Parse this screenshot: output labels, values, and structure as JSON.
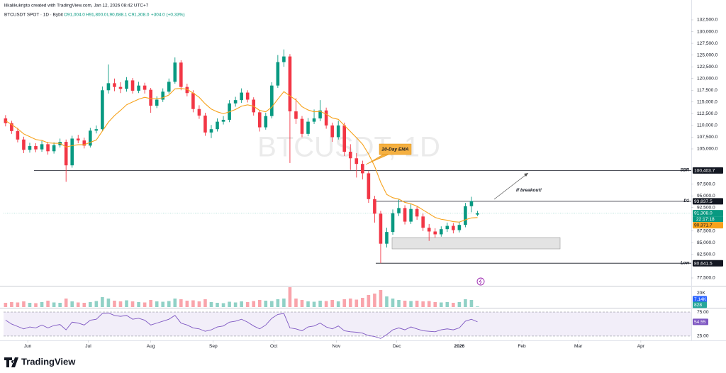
{
  "chart_data": {
    "type": "candlestick",
    "credit": "lilkalikukripto created with TradingView.com, Jan 12, 2026 08:42 UTC+7",
    "symbol": "BTCUSDT SPOT · 1D · Bybit",
    "ohlc": [
      {
        "value": 91004,
        "label": "O91,004.0"
      },
      {
        "value": 91800,
        "label": "H91,800.0"
      },
      {
        "value": 90688.1,
        "label": "L90,688.1"
      },
      {
        "value": 91308,
        "label": "C91,308.0"
      }
    ],
    "change": "+304.0 (+0.33%)",
    "watermark": "BTCUSDT, 1D",
    "up_color": "#089981",
    "down_color": "#f23645",
    "x": [
      0,
      3,
      6,
      9,
      12,
      15,
      18,
      21,
      24,
      27,
      30,
      33,
      36,
      39,
      42,
      45,
      48,
      51,
      54,
      57,
      60,
      63,
      66,
      69,
      72,
      75,
      78,
      81,
      84,
      87,
      90,
      93,
      96,
      99,
      102,
      105,
      108,
      111,
      114,
      117,
      120,
      123,
      126,
      129,
      132,
      135,
      138,
      141,
      144,
      147,
      150,
      153,
      156,
      159,
      162,
      165,
      168,
      171,
      174,
      177,
      180,
      183,
      186,
      189,
      192,
      195,
      198,
      201,
      204,
      207,
      210,
      213,
      216,
      219,
      222,
      225,
      228,
      231,
      234
    ],
    "xlim": [
      -1,
      340
    ],
    "xticks": [
      {
        "value": 11,
        "label": "Jun"
      },
      {
        "value": 41,
        "label": "Jul"
      },
      {
        "value": 72,
        "label": "Aug"
      },
      {
        "value": 103,
        "label": "Sep"
      },
      {
        "value": 133,
        "label": "Oct"
      },
      {
        "value": 164,
        "label": "Nov"
      },
      {
        "value": 194,
        "label": "Dec"
      },
      {
        "value": 225,
        "label": "2026"
      },
      {
        "value": 256,
        "label": "Feb"
      },
      {
        "value": 284,
        "label": "Mar"
      },
      {
        "value": 315,
        "label": "Apr"
      }
    ],
    "candles": [
      [
        111500,
        112200,
        109800,
        110500
      ],
      [
        110500,
        111000,
        108200,
        108800
      ],
      [
        108800,
        109500,
        106400,
        107000
      ],
      [
        107000,
        107600,
        104100,
        104800
      ],
      [
        104800,
        106300,
        104200,
        105600
      ],
      [
        105600,
        106200,
        104300,
        104900
      ],
      [
        104900,
        106700,
        104400,
        106000
      ],
      [
        106000,
        106500,
        103800,
        104500
      ],
      [
        104500,
        106400,
        104000,
        105800
      ],
      [
        105800,
        107200,
        105300,
        106500
      ],
      [
        106500,
        107000,
        98000,
        101500
      ],
      [
        101500,
        107800,
        101000,
        107200
      ],
      [
        107200,
        108000,
        106200,
        106800
      ],
      [
        106800,
        107400,
        105100,
        105700
      ],
      [
        105700,
        109500,
        105300,
        108900
      ],
      [
        108900,
        110000,
        108300,
        109200
      ],
      [
        109200,
        118300,
        108900,
        117500
      ],
      [
        117500,
        123000,
        116800,
        119000
      ],
      [
        119000,
        120000,
        117300,
        118200
      ],
      [
        118200,
        119200,
        116900,
        117800
      ],
      [
        117800,
        120300,
        117200,
        119600
      ],
      [
        119600,
        120100,
        116800,
        117400
      ],
      [
        117400,
        119300,
        116900,
        118500
      ],
      [
        118500,
        119100,
        116800,
        117600
      ],
      [
        117600,
        118000,
        112700,
        114200
      ],
      [
        114200,
        116200,
        113700,
        115500
      ],
      [
        115500,
        117900,
        115000,
        117200
      ],
      [
        117200,
        120000,
        116800,
        119300
      ],
      [
        119300,
        124500,
        118900,
        123400
      ],
      [
        123400,
        123900,
        117500,
        118200
      ],
      [
        118200,
        118900,
        116200,
        116900
      ],
      [
        116900,
        117500,
        112800,
        113500
      ],
      [
        113500,
        114300,
        111400,
        112100
      ],
      [
        112100,
        112700,
        107800,
        108500
      ],
      [
        108500,
        110100,
        107300,
        109200
      ],
      [
        109200,
        111500,
        108700,
        110800
      ],
      [
        110800,
        112000,
        110200,
        111200
      ],
      [
        111200,
        115400,
        110700,
        114700
      ],
      [
        114700,
        116100,
        114000,
        115400
      ],
      [
        115400,
        117900,
        114800,
        117000
      ],
      [
        117000,
        117500,
        114900,
        115500
      ],
      [
        115500,
        116000,
        112100,
        112800
      ],
      [
        112800,
        113300,
        108700,
        109600
      ],
      [
        109600,
        112700,
        109100,
        112000
      ],
      [
        112000,
        119200,
        111500,
        118500
      ],
      [
        118500,
        125000,
        118000,
        123500
      ],
      [
        123500,
        126200,
        122500,
        124700
      ],
      [
        124700,
        125200,
        102000,
        113000
      ],
      [
        113000,
        115800,
        110300,
        111400
      ],
      [
        111400,
        112000,
        107500,
        108200
      ],
      [
        108200,
        111600,
        107700,
        110800
      ],
      [
        110800,
        113400,
        110300,
        111500
      ],
      [
        111500,
        115400,
        110900,
        113200
      ],
      [
        113200,
        113800,
        109300,
        110000
      ],
      [
        110000,
        110600,
        106500,
        107500
      ],
      [
        107500,
        111000,
        107000,
        110000
      ],
      [
        110000,
        110600,
        103500,
        104400
      ],
      [
        104400,
        106000,
        100500,
        103000
      ],
      [
        103000,
        104100,
        98900,
        101800
      ],
      [
        101800,
        102500,
        98500,
        99800
      ],
      [
        99800,
        100300,
        93500,
        94300
      ],
      [
        94300,
        95000,
        89300,
        91200
      ],
      [
        91200,
        91800,
        80641.5,
        84800
      ],
      [
        84800,
        88200,
        84000,
        87300
      ],
      [
        87300,
        92100,
        86700,
        91300
      ],
      [
        91300,
        94200,
        90700,
        92400
      ],
      [
        92400,
        93000,
        88900,
        89500
      ],
      [
        89500,
        93200,
        89000,
        92200
      ],
      [
        92200,
        92800,
        89900,
        90600
      ],
      [
        90600,
        91200,
        87500,
        88200
      ],
      [
        88200,
        89000,
        85400,
        87400
      ],
      [
        87400,
        88100,
        86100,
        86800
      ],
      [
        86800,
        88500,
        86300,
        87900
      ],
      [
        87900,
        89300,
        87300,
        88600
      ],
      [
        88600,
        89200,
        87000,
        87700
      ],
      [
        87700,
        89500,
        87200,
        88800
      ],
      [
        88800,
        93500,
        88300,
        92800
      ],
      [
        92800,
        94800,
        91500,
        93900
      ],
      [
        91004,
        91800,
        90688.1,
        91308
      ]
    ],
    "ylim": [
      76290,
      136730
    ],
    "yticks": [
      {
        "value": 132500,
        "label": "132,500.0"
      },
      {
        "value": 130000,
        "label": "130,000.0"
      },
      {
        "value": 127500,
        "label": "127,500.0"
      },
      {
        "value": 125000,
        "label": "125,000.0"
      },
      {
        "value": 122500,
        "label": "122,500.0"
      },
      {
        "value": 120000,
        "label": "120,000.0"
      },
      {
        "value": 117500,
        "label": "117,500.0"
      },
      {
        "value": 115000,
        "label": "115,000.0"
      },
      {
        "value": 112500,
        "label": "112,500.0"
      },
      {
        "value": 110000,
        "label": "110,000.0"
      },
      {
        "value": 107500,
        "label": "107,500.0"
      },
      {
        "value": 105000,
        "label": "105,000.0"
      },
      {
        "value": 97500,
        "label": "97,500.0"
      },
      {
        "value": 95000,
        "label": "95,000.0"
      },
      {
        "value": 92500,
        "label": "92,500.0"
      },
      {
        "value": 87500,
        "label": "87,500.0"
      },
      {
        "value": 85000,
        "label": "85,000.0"
      },
      {
        "value": 82500,
        "label": "82,500.0"
      },
      {
        "value": 77500,
        "label": "77,500.0"
      }
    ],
    "grid": false,
    "ema": {
      "color": "#f7a21b",
      "values": [
        111000,
        110200,
        109300,
        108200,
        107600,
        107000,
        106800,
        106300,
        106200,
        106200,
        105400,
        105700,
        105900,
        105900,
        106400,
        106900,
        108800,
        110700,
        112100,
        113200,
        114400,
        115000,
        115600,
        116000,
        115700,
        115700,
        115900,
        116500,
        117800,
        117900,
        117700,
        116900,
        116000,
        114600,
        113500,
        112900,
        112500,
        112900,
        113400,
        114100,
        114400,
        114100,
        113200,
        112900,
        113900,
        115600,
        117200,
        116300,
        115400,
        114000,
        113300,
        112900,
        113000,
        112400,
        111600,
        111300,
        110000,
        108700,
        107400,
        106000,
        103900,
        101300,
        97900,
        95300,
        94600,
        94300,
        93600,
        93300,
        92800,
        92000,
        91200,
        90400,
        90000,
        89800,
        89500,
        89400,
        89900,
        90300,
        90371.7
      ],
      "last": {
        "value": 90371.7,
        "label": "90,371.7"
      }
    },
    "last_price": {
      "value": 91308,
      "label": "91,308.0"
    },
    "countdown": "22:17:18",
    "levels": [
      {
        "name": "SBR",
        "value": 100403.7,
        "label": "100,403.7"
      },
      {
        "name": "D1",
        "value": 93837.5,
        "label": "93,837.5"
      },
      {
        "name": "Low",
        "value": 80641.5,
        "label": "80,641.5"
      }
    ],
    "annotations": [
      "20-Day EMA",
      "If breakout!"
    ],
    "volume": {
      "values": [
        6000,
        7000,
        6500,
        8000,
        6000,
        5500,
        7000,
        9000,
        6500,
        6000,
        12000,
        8000,
        6500,
        6000,
        7000,
        8500,
        14000,
        12000,
        9000,
        8000,
        9500,
        8000,
        7000,
        6500,
        10000,
        8000,
        7500,
        8500,
        12000,
        11000,
        9000,
        9500,
        8000,
        11000,
        7000,
        6000,
        5500,
        7500,
        6500,
        8000,
        7000,
        8500,
        10000,
        9000,
        8500,
        11000,
        12000,
        28000,
        12000,
        10000,
        8000,
        7500,
        9000,
        8500,
        10000,
        8000,
        11000,
        12000,
        10500,
        13000,
        17000,
        19000,
        24000,
        15000,
        12000,
        10000,
        9000,
        8500,
        9000,
        8000,
        8500,
        7000,
        6500,
        7000,
        6000,
        7000,
        11000,
        10000,
        828
      ],
      "ylim": [
        0,
        28000
      ],
      "yticks": [
        {
          "value": 20000,
          "label": "20K"
        }
      ],
      "ma": {
        "value": 7140,
        "label": "7.14K"
      }
    },
    "rsi": {
      "color": "#7e57c2",
      "values": [
        58,
        50,
        45,
        40,
        44,
        42,
        48,
        42,
        47,
        49,
        38,
        54,
        52,
        48,
        58,
        60,
        72,
        73,
        68,
        66,
        68,
        60,
        62,
        58,
        48,
        52,
        56,
        60,
        68,
        52,
        48,
        42,
        40,
        35,
        38,
        44,
        46,
        54,
        56,
        60,
        54,
        46,
        40,
        48,
        62,
        70,
        72,
        42,
        40,
        36,
        44,
        46,
        52,
        44,
        40,
        46,
        36,
        34,
        33,
        31,
        26,
        24,
        20,
        28,
        38,
        42,
        38,
        44,
        40,
        36,
        35,
        34,
        38,
        40,
        38,
        42,
        56,
        60,
        54.55
      ],
      "ylim": [
        19,
        82.4
      ],
      "yticks": [
        {
          "value": 75,
          "label": "75.00"
        },
        {
          "value": 25,
          "label": "25.00"
        }
      ]
    },
    "brand": "TradingView"
  }
}
